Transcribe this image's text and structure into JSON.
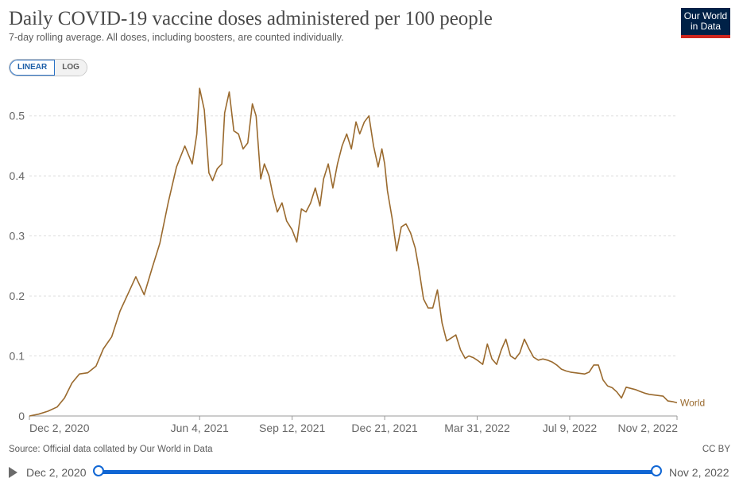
{
  "header": {
    "title": "Daily COVID-19 vaccine doses administered per 100 people",
    "subtitle": "7-day rolling average. All doses, including boosters, are counted individually.",
    "logo_line1": "Our World",
    "logo_line2": "in Data"
  },
  "controls": {
    "linear_label": "LINEAR",
    "log_label": "LOG",
    "active_scale": "linear"
  },
  "footer": {
    "source": "Source: Official data collated by Our World in Data",
    "license": "CC BY"
  },
  "timeline": {
    "start_label": "Dec 2, 2020",
    "end_label": "Nov 2, 2022",
    "play_icon": "play-icon"
  },
  "colors": {
    "series": "#9a6a2e",
    "grid": "#dddddd",
    "accent": "#1066d4",
    "logo_bg": "#002147",
    "logo_bar": "#ce261e"
  },
  "chart_data": {
    "type": "line",
    "title": "Daily COVID-19 vaccine doses administered per 100 people",
    "subtitle": "7-day rolling average. All doses, including boosters, are counted individually.",
    "xlabel": "",
    "ylabel": "",
    "ylim": [
      0,
      0.55
    ],
    "yticks": [
      0,
      0.1,
      0.2,
      0.3,
      0.4,
      0.5
    ],
    "ytick_labels": [
      "0",
      "0.1",
      "0.2",
      "0.3",
      "0.4",
      "0.5"
    ],
    "xlim": [
      "2020-12-02",
      "2022-11-02"
    ],
    "xticks": [
      "2020-12-02",
      "2021-06-04",
      "2021-09-12",
      "2021-12-21",
      "2022-03-31",
      "2022-07-09",
      "2022-11-02"
    ],
    "xtick_labels": [
      "Dec 2, 2020",
      "Jun 4, 2021",
      "Sep 12, 2021",
      "Dec 21, 2021",
      "Mar 31, 2022",
      "Jul 9, 2022",
      "Nov 2, 2022"
    ],
    "grid": "horizontal dashed",
    "legend": "end-of-line label",
    "series": [
      {
        "name": "World",
        "x": [
          "2020-12-02",
          "2020-12-12",
          "2020-12-22",
          "2021-01-01",
          "2021-01-09",
          "2021-01-17",
          "2021-01-25",
          "2021-02-03",
          "2021-02-12",
          "2021-02-20",
          "2021-03-01",
          "2021-03-10",
          "2021-03-19",
          "2021-03-27",
          "2021-04-05",
          "2021-04-14",
          "2021-04-22",
          "2021-05-01",
          "2021-05-10",
          "2021-05-19",
          "2021-05-27",
          "2021-06-01",
          "2021-06-04",
          "2021-06-09",
          "2021-06-14",
          "2021-06-18",
          "2021-06-23",
          "2021-06-28",
          "2021-07-01",
          "2021-07-06",
          "2021-07-11",
          "2021-07-16",
          "2021-07-21",
          "2021-07-26",
          "2021-07-31",
          "2021-08-04",
          "2021-08-09",
          "2021-08-13",
          "2021-08-18",
          "2021-08-22",
          "2021-08-27",
          "2021-09-01",
          "2021-09-06",
          "2021-09-12",
          "2021-09-17",
          "2021-09-22",
          "2021-09-27",
          "2021-10-02",
          "2021-10-07",
          "2021-10-12",
          "2021-10-16",
          "2021-10-21",
          "2021-10-26",
          "2021-10-31",
          "2021-11-05",
          "2021-11-10",
          "2021-11-15",
          "2021-11-20",
          "2021-11-24",
          "2021-11-29",
          "2021-12-04",
          "2021-12-09",
          "2021-12-14",
          "2021-12-18",
          "2021-12-21",
          "2021-12-24",
          "2021-12-29",
          "2022-01-03",
          "2022-01-08",
          "2022-01-13",
          "2022-01-18",
          "2022-01-23",
          "2022-01-27",
          "2022-02-01",
          "2022-02-06",
          "2022-02-11",
          "2022-02-16",
          "2022-02-21",
          "2022-02-26",
          "2022-03-03",
          "2022-03-08",
          "2022-03-13",
          "2022-03-18",
          "2022-03-22",
          "2022-03-27",
          "2022-04-01",
          "2022-04-06",
          "2022-04-11",
          "2022-04-16",
          "2022-04-21",
          "2022-04-26",
          "2022-05-01",
          "2022-05-06",
          "2022-05-11",
          "2022-05-16",
          "2022-05-21",
          "2022-05-26",
          "2022-05-31",
          "2022-06-05",
          "2022-06-10",
          "2022-06-15",
          "2022-06-20",
          "2022-06-25",
          "2022-06-30",
          "2022-07-05",
          "2022-07-10",
          "2022-07-15",
          "2022-07-20",
          "2022-07-25",
          "2022-07-30",
          "2022-08-04",
          "2022-08-09",
          "2022-08-14",
          "2022-08-19",
          "2022-08-24",
          "2022-08-29",
          "2022-09-03",
          "2022-09-08",
          "2022-09-13",
          "2022-09-18",
          "2022-09-23",
          "2022-09-28",
          "2022-10-03",
          "2022-10-08",
          "2022-10-13",
          "2022-10-18",
          "2022-10-23",
          "2022-10-28",
          "2022-11-02"
        ],
        "values": [
          0.0,
          0.003,
          0.008,
          0.015,
          0.03,
          0.055,
          0.07,
          0.072,
          0.083,
          0.112,
          0.132,
          0.175,
          0.205,
          0.232,
          0.202,
          0.248,
          0.288,
          0.355,
          0.415,
          0.45,
          0.42,
          0.47,
          0.546,
          0.51,
          0.405,
          0.392,
          0.412,
          0.42,
          0.505,
          0.54,
          0.475,
          0.47,
          0.445,
          0.455,
          0.52,
          0.5,
          0.395,
          0.42,
          0.4,
          0.37,
          0.34,
          0.355,
          0.325,
          0.31,
          0.29,
          0.345,
          0.34,
          0.355,
          0.38,
          0.35,
          0.395,
          0.42,
          0.38,
          0.42,
          0.45,
          0.47,
          0.445,
          0.49,
          0.47,
          0.49,
          0.5,
          0.45,
          0.415,
          0.445,
          0.42,
          0.375,
          0.33,
          0.275,
          0.315,
          0.32,
          0.305,
          0.28,
          0.245,
          0.195,
          0.18,
          0.18,
          0.21,
          0.155,
          0.125,
          0.13,
          0.135,
          0.11,
          0.096,
          0.1,
          0.097,
          0.092,
          0.086,
          0.12,
          0.095,
          0.086,
          0.11,
          0.128,
          0.1,
          0.095,
          0.105,
          0.128,
          0.112,
          0.098,
          0.093,
          0.095,
          0.093,
          0.09,
          0.085,
          0.078,
          0.075,
          0.073,
          0.072,
          0.071,
          0.07,
          0.073,
          0.085,
          0.085,
          0.06,
          0.05,
          0.047,
          0.04,
          0.03,
          0.048,
          0.046,
          0.044,
          0.041,
          0.038,
          0.036,
          0.035,
          0.034,
          0.033,
          0.025,
          0.024,
          0.022
        ]
      }
    ]
  }
}
